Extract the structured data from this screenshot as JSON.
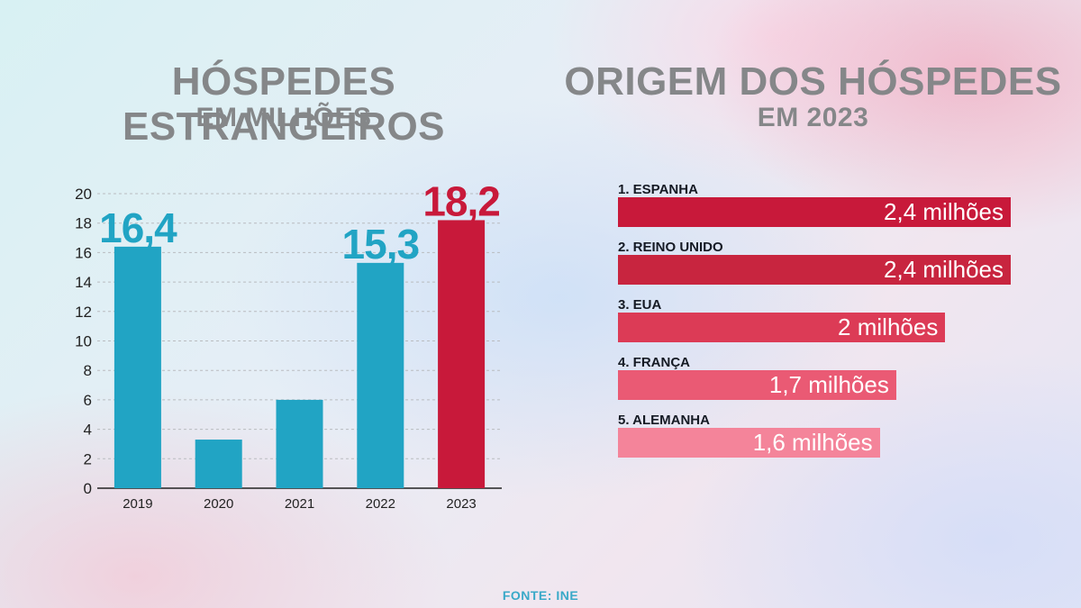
{
  "left_panel": {
    "title": "HÓSPEDES ESTRANGEIROS",
    "subtitle": "EM MILHÕES"
  },
  "right_panel": {
    "title": "ORIGEM DOS HÓSPEDES",
    "subtitle": "EM 2023"
  },
  "chart_data": [
    {
      "type": "bar",
      "title": "HÓSPEDES ESTRANGEIROS",
      "subtitle": "EM MILHÕES",
      "categories": [
        "2019",
        "2020",
        "2021",
        "2022",
        "2023"
      ],
      "values": [
        16.4,
        3.3,
        6.0,
        15.3,
        18.2
      ],
      "data_labels": [
        "16,4",
        "",
        "",
        "15,3",
        "18,2"
      ],
      "ylim": [
        0,
        20
      ],
      "yticks": [
        0,
        2,
        4,
        6,
        8,
        10,
        12,
        14,
        16,
        18,
        20
      ],
      "grid": true,
      "colors": {
        "default": "#21a4c4",
        "highlight": "#c8193a"
      },
      "highlight_category": "2023"
    },
    {
      "type": "bar",
      "orientation": "horizontal",
      "title": "ORIGEM DOS HÓSPEDES",
      "subtitle": "EM 2023",
      "categories": [
        "1. ESPANHA",
        "2. REINO UNIDO",
        "3. EUA",
        "4. FRANÇA",
        "5. ALEMANHA"
      ],
      "values": [
        2.4,
        2.4,
        2.0,
        1.7,
        1.6
      ],
      "data_labels": [
        "2,4 milhões",
        "2,4 milhões",
        "2 milhões",
        "1,7 milhões",
        "1,6 milhões"
      ],
      "colors": [
        "#c8193a",
        "#c8253f",
        "#dc3b56",
        "#ea5a74",
        "#f4849a"
      ]
    }
  ],
  "source": "FONTE: INE"
}
